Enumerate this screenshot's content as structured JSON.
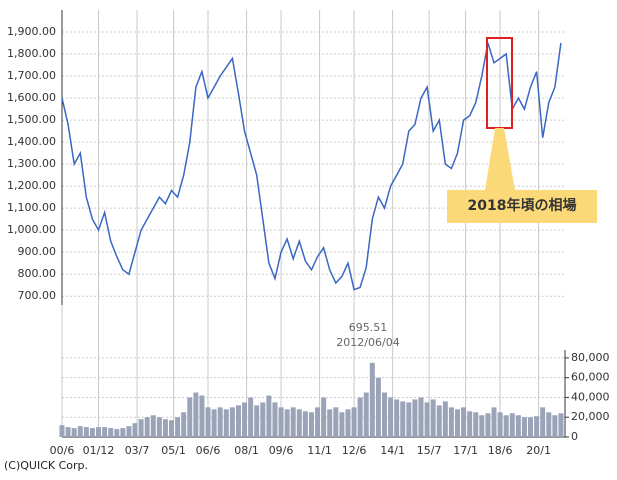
{
  "copyright": "(C)QUICK Corp.",
  "chart_data": [
    {
      "type": "line",
      "annotations": [
        "2018年頃の相場"
      ],
      "color": "#3a66c4",
      "grid": true,
      "xlim": [
        "00/6",
        "21/2"
      ],
      "xticks": [
        "00/6",
        "01/12",
        "03/7",
        "05/1",
        "06/6",
        "08/1",
        "09/6",
        "11/1",
        "12/6",
        "14/1",
        "15/7",
        "17/1",
        "18/6",
        "20/1"
      ],
      "ylim": [
        660,
        2000
      ],
      "yticks": [
        {
          "value": 700,
          "label": "700.00"
        },
        {
          "value": 800,
          "label": "800.00"
        },
        {
          "value": 900,
          "label": "900.00"
        },
        {
          "value": 1000,
          "label": "1,000.00"
        },
        {
          "value": 1100,
          "label": "1,100.00"
        },
        {
          "value": 1200,
          "label": "1,200.00"
        },
        {
          "value": 1300,
          "label": "1,300.00"
        },
        {
          "value": 1400,
          "label": "1,400.00"
        },
        {
          "value": 1500,
          "label": "1,500.00"
        },
        {
          "value": 1600,
          "label": "1,600.00"
        },
        {
          "value": 1700,
          "label": "1,700.00"
        },
        {
          "value": 1800,
          "label": "1,800.00"
        },
        {
          "value": 1900,
          "label": "1,900.00"
        }
      ],
      "x": [
        "00/6",
        "00/9",
        "00/12",
        "01/3",
        "01/6",
        "01/9",
        "01/12",
        "02/3",
        "02/6",
        "02/9",
        "02/12",
        "03/3",
        "03/6",
        "03/9",
        "03/12",
        "04/3",
        "04/6",
        "04/9",
        "04/12",
        "05/3",
        "05/6",
        "05/9",
        "05/12",
        "06/3",
        "06/6",
        "06/9",
        "06/12",
        "07/3",
        "07/6",
        "07/9",
        "07/12",
        "08/3",
        "08/6",
        "08/9",
        "08/12",
        "09/3",
        "09/6",
        "09/9",
        "09/12",
        "10/3",
        "10/6",
        "10/9",
        "10/12",
        "11/3",
        "11/6",
        "11/9",
        "11/12",
        "12/3",
        "12/6",
        "12/9",
        "12/12",
        "13/3",
        "13/6",
        "13/9",
        "13/12",
        "14/3",
        "14/6",
        "14/9",
        "14/12",
        "15/3",
        "15/6",
        "15/9",
        "15/12",
        "16/3",
        "16/6",
        "16/9",
        "16/12",
        "17/3",
        "17/6",
        "17/9",
        "17/12",
        "18/3",
        "18/6",
        "18/9",
        "18/12",
        "19/3",
        "19/6",
        "19/9",
        "19/12",
        "20/3",
        "20/6",
        "20/9",
        "20/12"
      ],
      "values": [
        1600,
        1480,
        1300,
        1350,
        1150,
        1050,
        1000,
        1080,
        950,
        880,
        820,
        800,
        900,
        1000,
        1050,
        1100,
        1150,
        1120,
        1180,
        1150,
        1250,
        1400,
        1650,
        1720,
        1600,
        1650,
        1700,
        1740,
        1780,
        1620,
        1450,
        1350,
        1250,
        1050,
        850,
        780,
        900,
        960,
        870,
        950,
        860,
        820,
        880,
        920,
        820,
        760,
        790,
        850,
        730,
        740,
        830,
        1050,
        1150,
        1100,
        1200,
        1250,
        1300,
        1450,
        1480,
        1600,
        1650,
        1450,
        1500,
        1300,
        1280,
        1350,
        1500,
        1520,
        1580,
        1700,
        1850,
        1760,
        1780,
        1800,
        1550,
        1600,
        1550,
        1650,
        1720,
        1420,
        1580,
        1650,
        1850
      ]
    },
    {
      "type": "bar",
      "annotations": [
        "695.51",
        "2012/06/04"
      ],
      "color": "#9aa3b8",
      "grid": true,
      "xlim": [
        "00/6",
        "21/2"
      ],
      "ylim": [
        0,
        88000
      ],
      "yticks": [
        0,
        {
          "value": 20000,
          "label": "20,000"
        },
        {
          "value": 40000,
          "label": "40,000"
        },
        {
          "value": 60000,
          "label": "60,000"
        },
        {
          "value": 80000,
          "label": "80,000"
        }
      ],
      "x": [
        "00/6",
        "00/9",
        "00/12",
        "01/3",
        "01/6",
        "01/9",
        "01/12",
        "02/3",
        "02/6",
        "02/9",
        "02/12",
        "03/3",
        "03/6",
        "03/9",
        "03/12",
        "04/3",
        "04/6",
        "04/9",
        "04/12",
        "05/3",
        "05/6",
        "05/9",
        "05/12",
        "06/3",
        "06/6",
        "06/9",
        "06/12",
        "07/3",
        "07/6",
        "07/9",
        "07/12",
        "08/3",
        "08/6",
        "08/9",
        "08/12",
        "09/3",
        "09/6",
        "09/9",
        "09/12",
        "10/3",
        "10/6",
        "10/9",
        "10/12",
        "11/3",
        "11/6",
        "11/9",
        "11/12",
        "12/3",
        "12/6",
        "12/9",
        "12/12",
        "13/3",
        "13/6",
        "13/9",
        "13/12",
        "14/3",
        "14/6",
        "14/9",
        "14/12",
        "15/3",
        "15/6",
        "15/9",
        "15/12",
        "16/3",
        "16/6",
        "16/9",
        "16/12",
        "17/3",
        "17/6",
        "17/9",
        "17/12",
        "18/3",
        "18/6",
        "18/9",
        "18/12",
        "19/3",
        "19/6",
        "19/9",
        "19/12",
        "20/3",
        "20/6",
        "20/9",
        "20/12"
      ],
      "values": [
        12000,
        10000,
        9000,
        11000,
        10000,
        9000,
        10000,
        10000,
        9000,
        8000,
        9000,
        11000,
        14000,
        18000,
        20000,
        22000,
        20000,
        18000,
        17000,
        20000,
        25000,
        40000,
        45000,
        42000,
        30000,
        28000,
        30000,
        28000,
        30000,
        32000,
        35000,
        40000,
        32000,
        35000,
        42000,
        35000,
        30000,
        28000,
        30000,
        28000,
        26000,
        25000,
        30000,
        40000,
        28000,
        30000,
        25000,
        28000,
        30000,
        40000,
        45000,
        75000,
        60000,
        45000,
        40000,
        38000,
        36000,
        35000,
        38000,
        40000,
        35000,
        38000,
        32000,
        36000,
        30000,
        28000,
        30000,
        26000,
        25000,
        22000,
        24000,
        30000,
        25000,
        22000,
        24000,
        22000,
        20000,
        20000,
        21000,
        30000,
        25000,
        22000,
        24000
      ]
    }
  ]
}
